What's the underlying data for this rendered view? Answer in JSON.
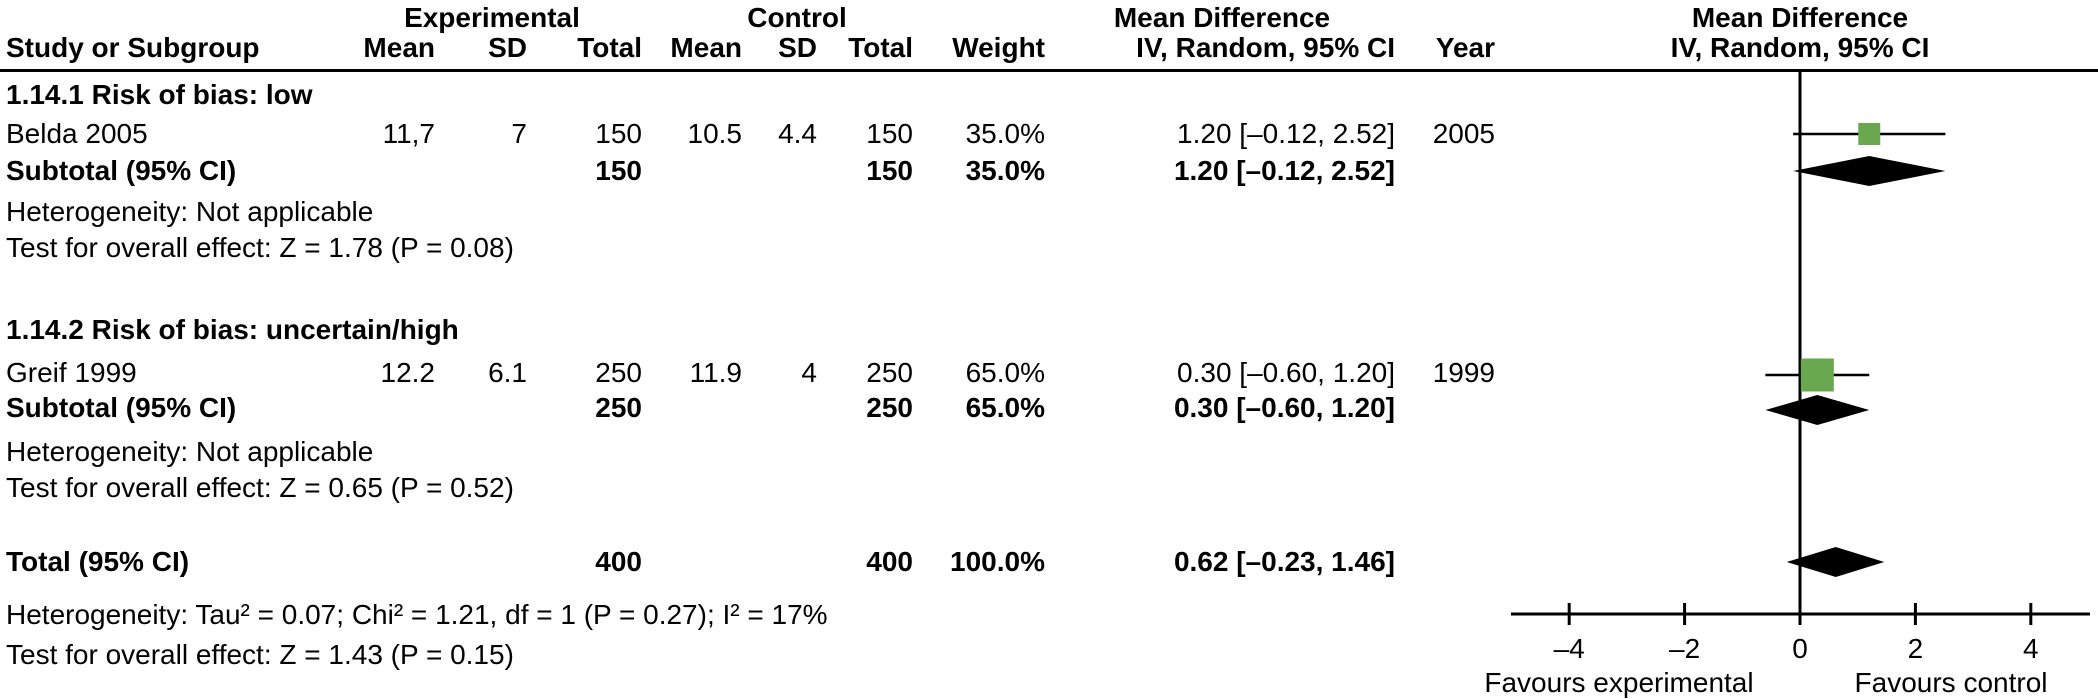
{
  "header": {
    "group_experimental": "Experimental",
    "group_control": "Control",
    "md_text_title": "Mean Difference",
    "md_plot_title": "Mean Difference",
    "col_study": "Study or Subgroup",
    "col_mean": "Mean",
    "col_sd": "SD",
    "col_total": "Total",
    "col_mean2": "Mean",
    "col_sd2": "SD",
    "col_total2": "Total",
    "col_weight": "Weight",
    "col_ci": "IV, Random, 95% CI",
    "col_year": "Year",
    "col_ci_plot": "IV, Random, 95% CI"
  },
  "subgroup1": {
    "title": "1.14.1 Risk of bias: low",
    "study": {
      "name": "Belda 2005",
      "mean": "11,7",
      "sd": "7",
      "total": "150",
      "c_mean": "10.5",
      "c_sd": "4.4",
      "c_total": "150",
      "weight": "35.0%",
      "ci": "1.20 [–0.12, 2.52]",
      "year": "2005"
    },
    "subtotal": {
      "label": "Subtotal (95% CI)",
      "total": "150",
      "c_total": "150",
      "weight": "35.0%",
      "ci": "1.20 [–0.12, 2.52]"
    },
    "heterogeneity": "Heterogeneity: Not applicable",
    "overall_effect": "Test for overall effect: Z = 1.78 (P = 0.08)"
  },
  "subgroup2": {
    "title": "1.14.2 Risk of bias: uncertain/high",
    "study": {
      "name": "Greif 1999",
      "mean": "12.2",
      "sd": "6.1",
      "total": "250",
      "c_mean": "11.9",
      "c_sd": "4",
      "c_total": "250",
      "weight": "65.0%",
      "ci": "0.30 [–0.60, 1.20]",
      "year": "1999"
    },
    "subtotal": {
      "label": "Subtotal (95% CI)",
      "total": "250",
      "c_total": "250",
      "weight": "65.0%",
      "ci": "0.30 [–0.60, 1.20]"
    },
    "heterogeneity": "Heterogeneity: Not applicable",
    "overall_effect": "Test for overall effect: Z = 0.65 (P = 0.52)"
  },
  "total": {
    "label": "Total (95% CI)",
    "total": "400",
    "c_total": "400",
    "weight": "100.0%",
    "ci": "0.62 [–0.23, 1.46]"
  },
  "heterogeneity_total": "Heterogeneity: Tau² = 0.07; Chi² = 1.21, df = 1 (P = 0.27); I² = 17%",
  "overall_effect_total": "Test for overall effect: Z = 1.43 (P = 0.15)",
  "chart_data": {
    "type": "forest",
    "effect_measure": "Mean Difference, IV, Random, 95% CI",
    "x_axis": {
      "ticks": [
        -4,
        -2,
        0,
        2,
        4
      ],
      "range": [
        -5,
        5
      ],
      "zero_line": 0
    },
    "favours_left": "Favours experimental",
    "favours_right": "Favours control",
    "colors": {
      "square": "#6AA84F",
      "diamond": "#000000",
      "line": "#000000"
    },
    "points": [
      {
        "label": "Belda 2005",
        "md": 1.2,
        "ci": [
          -0.12,
          2.52
        ],
        "weight_pct": 35.0,
        "year": 2005
      },
      {
        "label": "Greif 1999",
        "md": 0.3,
        "ci": [
          -0.6,
          1.2
        ],
        "weight_pct": 65.0,
        "year": 1999
      }
    ],
    "diamonds": [
      {
        "label": "Subtotal 1.14.1 Risk of bias: low",
        "md": 1.2,
        "ci": [
          -0.12,
          2.52
        ]
      },
      {
        "label": "Subtotal 1.14.2 Risk of bias: uncertain/high",
        "md": 0.3,
        "ci": [
          -0.6,
          1.2
        ]
      },
      {
        "label": "Total",
        "md": 0.62,
        "ci": [
          -0.23,
          1.46
        ]
      }
    ]
  }
}
